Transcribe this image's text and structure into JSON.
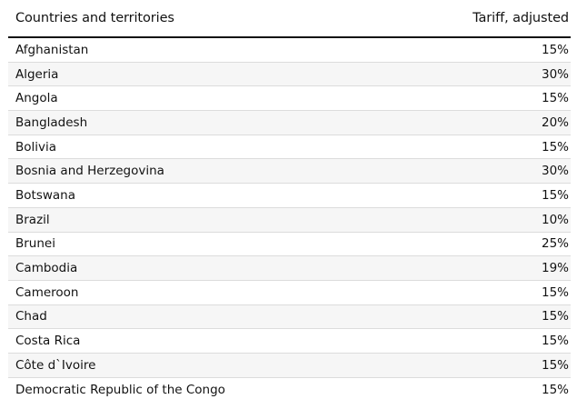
{
  "table": {
    "headers": {
      "country": "Countries and territories",
      "tariff": "Tariff, adjusted"
    },
    "rows": [
      {
        "country": "Afghanistan",
        "tariff": "15%"
      },
      {
        "country": "Algeria",
        "tariff": "30%"
      },
      {
        "country": "Angola",
        "tariff": "15%"
      },
      {
        "country": "Bangladesh",
        "tariff": "20%"
      },
      {
        "country": "Bolivia",
        "tariff": "15%"
      },
      {
        "country": "Bosnia and Herzegovina",
        "tariff": "30%"
      },
      {
        "country": "Botswana",
        "tariff": "15%"
      },
      {
        "country": "Brazil",
        "tariff": "10%"
      },
      {
        "country": "Brunei",
        "tariff": "25%"
      },
      {
        "country": "Cambodia",
        "tariff": "19%"
      },
      {
        "country": "Cameroon",
        "tariff": "15%"
      },
      {
        "country": "Chad",
        "tariff": "15%"
      },
      {
        "country": "Costa Rica",
        "tariff": "15%"
      },
      {
        "country": "Côte d`Ivoire",
        "tariff": "15%"
      },
      {
        "country": "Democratic Republic of the Congo",
        "tariff": "15%"
      }
    ]
  }
}
